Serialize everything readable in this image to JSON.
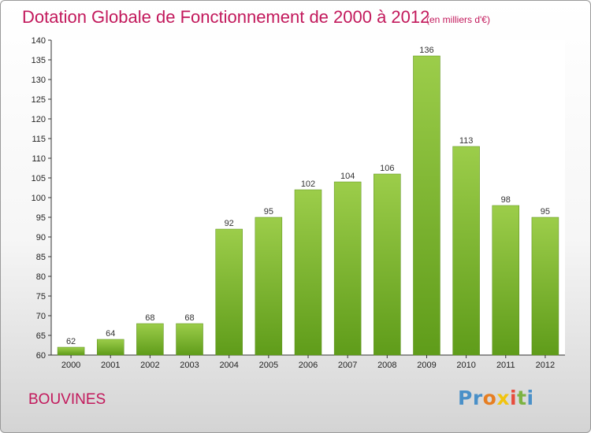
{
  "chart_data": {
    "type": "bar",
    "title": "Dotation Globale de Fonctionnement de 2000 à 2012",
    "subtitle": "(en milliers d'€)",
    "categories": [
      "2000",
      "2001",
      "2002",
      "2003",
      "2004",
      "2005",
      "2006",
      "2007",
      "2008",
      "2009",
      "2010",
      "2011",
      "2012"
    ],
    "values": [
      62,
      64,
      68,
      68,
      92,
      95,
      102,
      104,
      106,
      136,
      113,
      98,
      95
    ],
    "ylim": [
      60,
      140
    ],
    "yticks": [
      60,
      65,
      70,
      75,
      80,
      85,
      90,
      95,
      100,
      105,
      110,
      115,
      120,
      125,
      130,
      135,
      140
    ],
    "grid": false,
    "bar_color_top": "#9ccd4a",
    "bar_color_bottom": "#5f9c1a"
  },
  "commune": "BOUVINES",
  "logo": {
    "letters": [
      "P",
      "r",
      "o",
      "x",
      "i",
      "t",
      "i"
    ],
    "colors": [
      "#4a90c8",
      "#4a90c8",
      "#e67e22",
      "#f1c40f",
      "#e74c3c",
      "#7cb342",
      "#4a90c8"
    ]
  },
  "text_color": "#c2185b"
}
